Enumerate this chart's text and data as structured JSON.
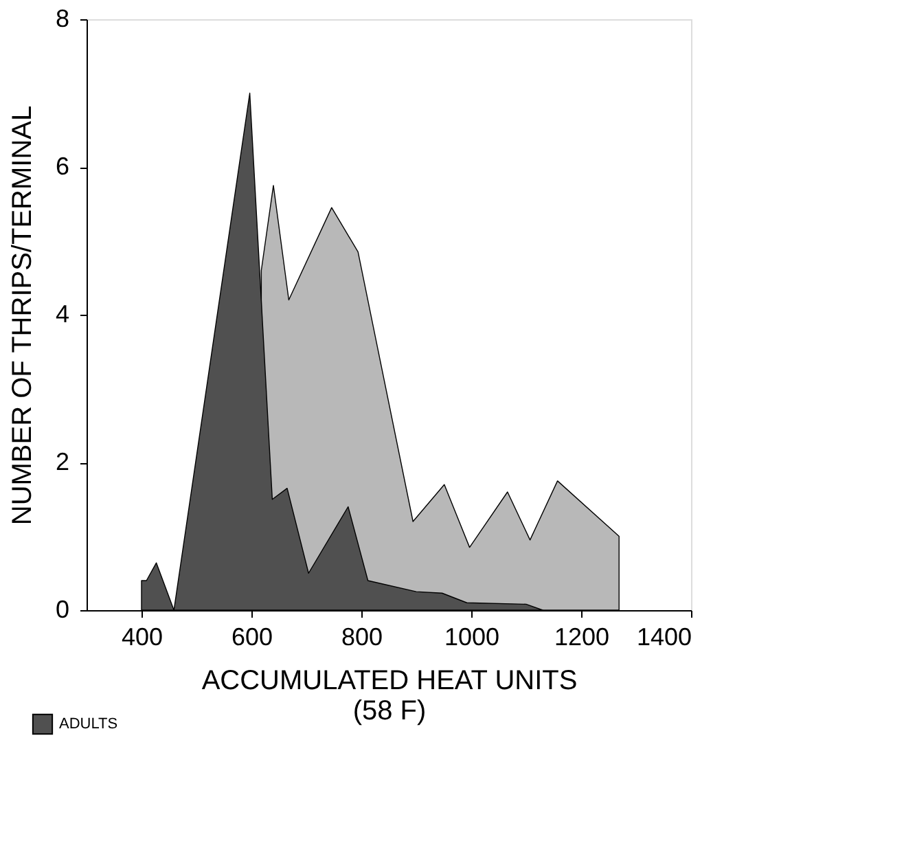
{
  "chart_data": {
    "type": "area",
    "xlabel": "ACCUMULATED HEAT UNITS\n(58 F)",
    "ylabel": "NUMBER OF THRIPS/TERMINAL",
    "xlim": [
      300,
      1400
    ],
    "xticks": [
      400,
      600,
      800,
      1000,
      1200,
      1400
    ],
    "ylim": [
      0,
      8
    ],
    "yticks": [
      0,
      2,
      4,
      6,
      8
    ],
    "grid": false,
    "legend": "bottom left",
    "series": [
      {
        "color": "#b8b8b8",
        "x": [
          618,
          640,
          668,
          746,
          794,
          894,
          951,
          997,
          1066,
          1107,
          1157,
          1269,
          1269
        ],
        "values": [
          4.6,
          5.75,
          4.2,
          5.45,
          4.85,
          1.2,
          1.7,
          0.85,
          1.6,
          0.95,
          1.75,
          1.0,
          0
        ]
      },
      {
        "name": "ADULTS",
        "color": "#505050",
        "x": [
          400,
          409,
          427,
          459,
          597,
          638,
          665,
          704,
          776,
          812,
          900,
          947,
          992,
          1100,
          1130
        ],
        "values": [
          0.4,
          0.4,
          0.64,
          0,
          7.0,
          1.5,
          1.65,
          0.5,
          1.4,
          0.4,
          0.25,
          0.23,
          0.1,
          0.08,
          0
        ]
      }
    ]
  }
}
